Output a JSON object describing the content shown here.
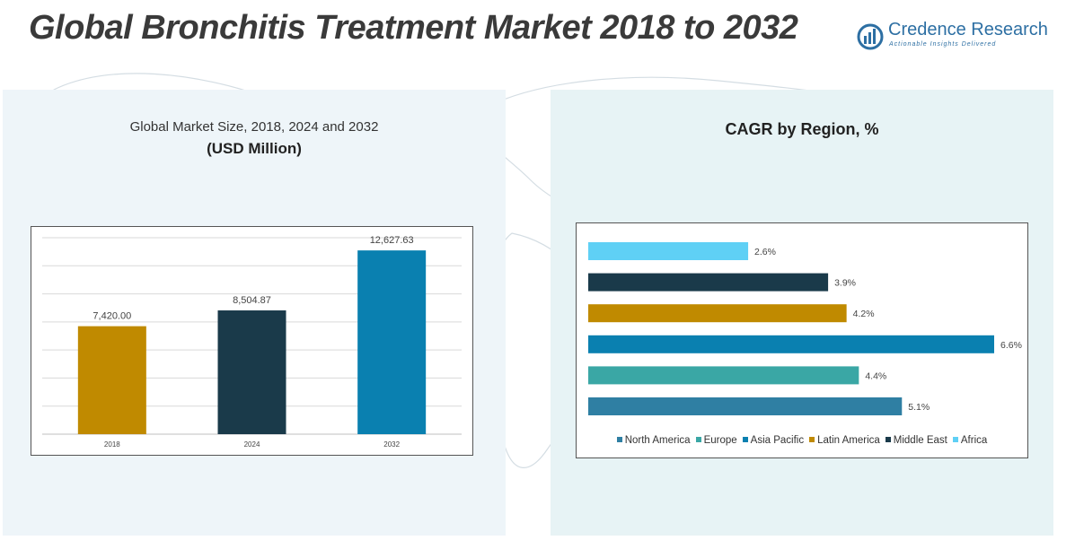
{
  "header": {
    "title": "Global Bronchitis Treatment Market 2018 to 2032",
    "logo_name": "Credence Research",
    "logo_tagline": "Actionable Insights Delivered"
  },
  "colors": {
    "gold": "#c08a00",
    "navy": "#1a3a4a",
    "blue": "#0a80b0",
    "teal": "#3aa7a5",
    "steel": "#2f7fa3",
    "sky": "#5fd0f5"
  },
  "chart_data": [
    {
      "type": "bar",
      "title": "Global Market Size, 2018, 2024 and 2032",
      "unit_label": "(USD Million)",
      "categories": [
        "2018",
        "2024",
        "2032"
      ],
      "values": [
        7420.0,
        8504.87,
        12627.63
      ],
      "value_labels": [
        "7,420.00",
        "8,504.87",
        "12,627.63"
      ],
      "ylim": [
        0,
        13500
      ],
      "grid": true
    },
    {
      "type": "bar",
      "orientation": "horizontal",
      "title": "CAGR by Region, %",
      "categories": [
        "Africa",
        "Middle East",
        "Latin America",
        "Asia Pacific",
        "Europe",
        "North America"
      ],
      "values": [
        2.6,
        3.9,
        4.2,
        6.6,
        4.4,
        5.1
      ],
      "value_labels": [
        "2.6%",
        "3.9%",
        "4.2%",
        "6.6%",
        "4.4%",
        "5.1%"
      ],
      "xlim": [
        0,
        6.6
      ],
      "legend": [
        "North America",
        "Europe",
        "Asia Pacific",
        "Latin America",
        "Middle East",
        "Africa"
      ],
      "legend_position": "bottom"
    }
  ]
}
